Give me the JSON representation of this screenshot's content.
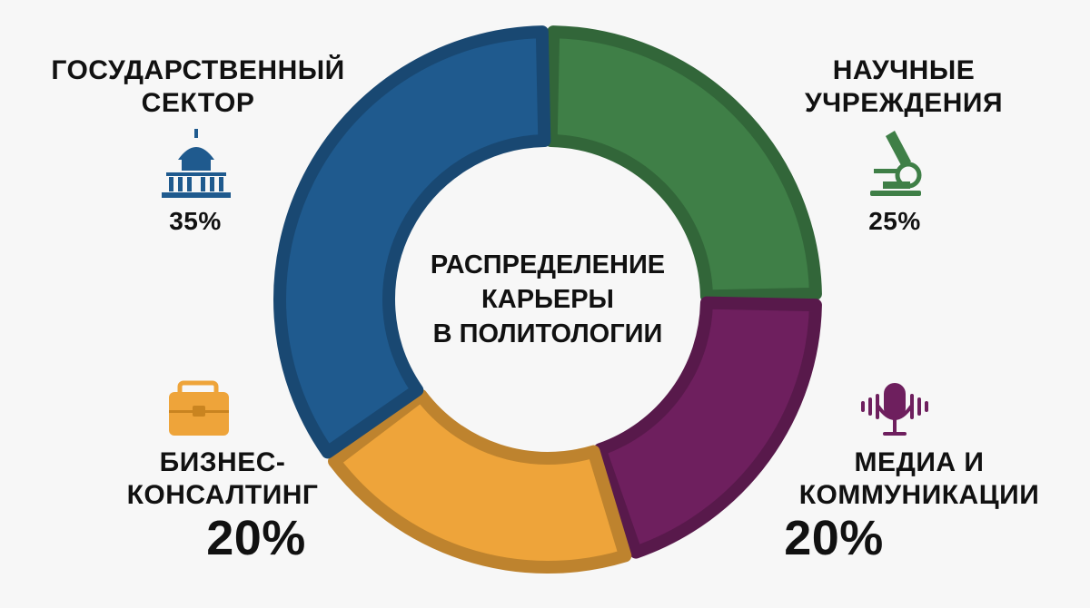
{
  "chart_data": {
    "type": "pie",
    "donut": true,
    "title": "РАСПРЕДЕЛЕНИЕ\nКАРЬЕРЫ\nВ ПОЛИТОЛОГИИ",
    "categories": [
      "НАУЧНЫЕ\nУЧРЕЖДЕНИЯ",
      "МЕДИА И\nКОММУНИКАЦИИ",
      "БИЗНЕС-\nКОНСАЛТИНГ",
      "ГОСУДАРСТВЕННЫЙ\nСЕКТОР"
    ],
    "values": [
      25,
      20,
      20,
      35
    ],
    "value_labels": [
      "25%",
      "20%",
      "20%",
      "35%"
    ],
    "colors": [
      "#3f7f47",
      "#6e1f5e",
      "#eea43a",
      "#1f5a8e"
    ]
  }
}
